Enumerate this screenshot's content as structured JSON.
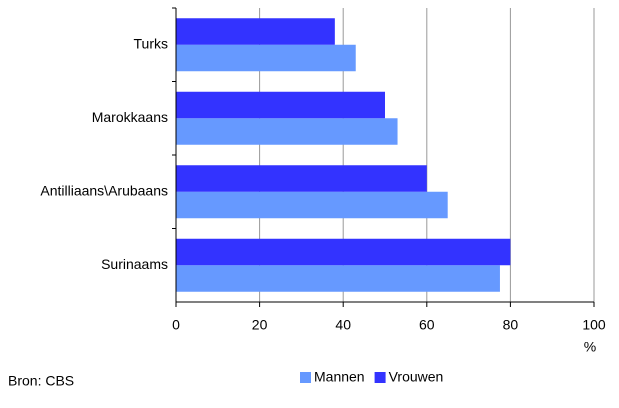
{
  "chart_data": {
    "type": "barh",
    "categories": [
      "Turks",
      "Marokkaans",
      "Antilliaans\\Arubaans",
      "Surinaams"
    ],
    "series": [
      {
        "name": "Mannen",
        "color": "#6699ff",
        "values": [
          43,
          53,
          65,
          77.5
        ]
      },
      {
        "name": "Vrouwen",
        "color": "#3333ff",
        "values": [
          38,
          50,
          60,
          80
        ]
      }
    ],
    "xlim": [
      0,
      100
    ],
    "xticks": [
      0,
      20,
      40,
      60,
      80,
      100
    ],
    "xlabel": "%",
    "source": "Bron: CBS",
    "grid": true,
    "legend": "bottom"
  }
}
